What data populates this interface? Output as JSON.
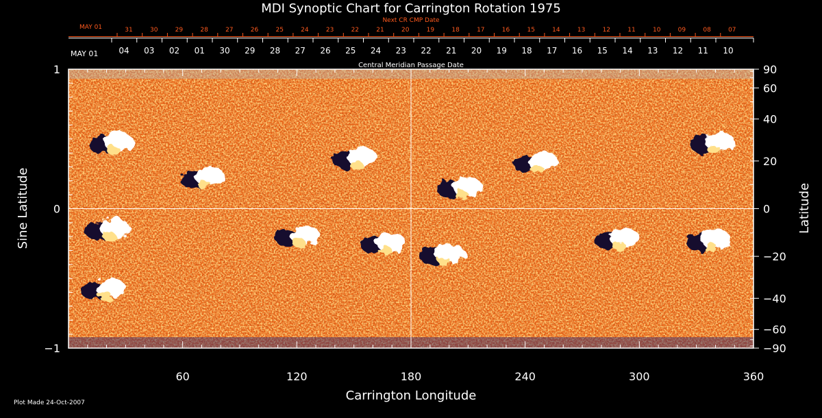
{
  "chart_data": {
    "type": "heatmap",
    "title": "MDI Synoptic Chart for Carrington Rotation 1975",
    "xlabel": "Carrington Longitude",
    "ylabel_left": "Sine Latitude",
    "ylabel_right": "Latitude",
    "xlim": [
      0,
      360
    ],
    "ylim_sine": [
      -1,
      1
    ],
    "x_ticks": [
      "60",
      "120",
      "180",
      "240",
      "300",
      "360"
    ],
    "x_tick_values": [
      60,
      120,
      180,
      240,
      300,
      360
    ],
    "y_left_ticks": [
      "1",
      "0",
      "−1"
    ],
    "y_left_tick_values": [
      1,
      0,
      -1
    ],
    "y_right_ticks": [
      "90",
      "60",
      "40",
      "20",
      "0",
      "−20",
      "−40",
      "−60",
      "−90"
    ],
    "y_right_tick_values": [
      90,
      60,
      40,
      20,
      0,
      -20,
      -40,
      -60,
      -90
    ],
    "cmp_axis_title": "Central Meridian Passage Date",
    "cmp_start_label": "MAY 01",
    "cmp_dates": [
      "04",
      "03",
      "02",
      "01",
      "30",
      "29",
      "28",
      "27",
      "26",
      "25",
      "24",
      "23",
      "22",
      "21",
      "20",
      "19",
      "18",
      "17",
      "16",
      "15",
      "14",
      "13",
      "12",
      "11",
      "10"
    ],
    "next_cmp_title": "Next CR CMP Date",
    "next_cmp_start_label": "MAY 01",
    "next_cmp_dates": [
      "31",
      "30",
      "29",
      "28",
      "27",
      "26",
      "25",
      "24",
      "23",
      "22",
      "21",
      "20",
      "19",
      "18",
      "17",
      "16",
      "15",
      "14",
      "13",
      "12",
      "11",
      "10",
      "09",
      "08",
      "07"
    ],
    "footer": "Plot Made 24-Oct-2007",
    "grid_lines": [
      "longitude 180",
      "sine latitude 0"
    ],
    "colors": {
      "background_field": "#e8681c",
      "positive_polarity": "#ffffff",
      "negative_polarity": "#1a0a40",
      "axes": "#ffffff",
      "next_cmp_axis": "#ff5a1e"
    },
    "active_regions": [
      {
        "lon": 22,
        "sinlat": 0.47,
        "polarity": "bipolar"
      },
      {
        "lon": 70,
        "sinlat": 0.22,
        "polarity": "bipolar"
      },
      {
        "lon": 150,
        "sinlat": 0.36,
        "polarity": "bipolar"
      },
      {
        "lon": 205,
        "sinlat": 0.15,
        "polarity": "bipolar"
      },
      {
        "lon": 196,
        "sinlat": -0.33,
        "polarity": "bipolar"
      },
      {
        "lon": 245,
        "sinlat": 0.33,
        "polarity": "bipolar"
      },
      {
        "lon": 338,
        "sinlat": 0.47,
        "polarity": "bipolar"
      },
      {
        "lon": 336,
        "sinlat": -0.23,
        "polarity": "bipolar"
      },
      {
        "lon": 288,
        "sinlat": -0.22,
        "polarity": "bipolar"
      },
      {
        "lon": 120,
        "sinlat": -0.2,
        "polarity": "bipolar"
      },
      {
        "lon": 165,
        "sinlat": -0.25,
        "polarity": "bipolar"
      },
      {
        "lon": 20,
        "sinlat": -0.15,
        "polarity": "bipolar"
      },
      {
        "lon": 18,
        "sinlat": -0.58,
        "polarity": "bipolar"
      }
    ]
  }
}
